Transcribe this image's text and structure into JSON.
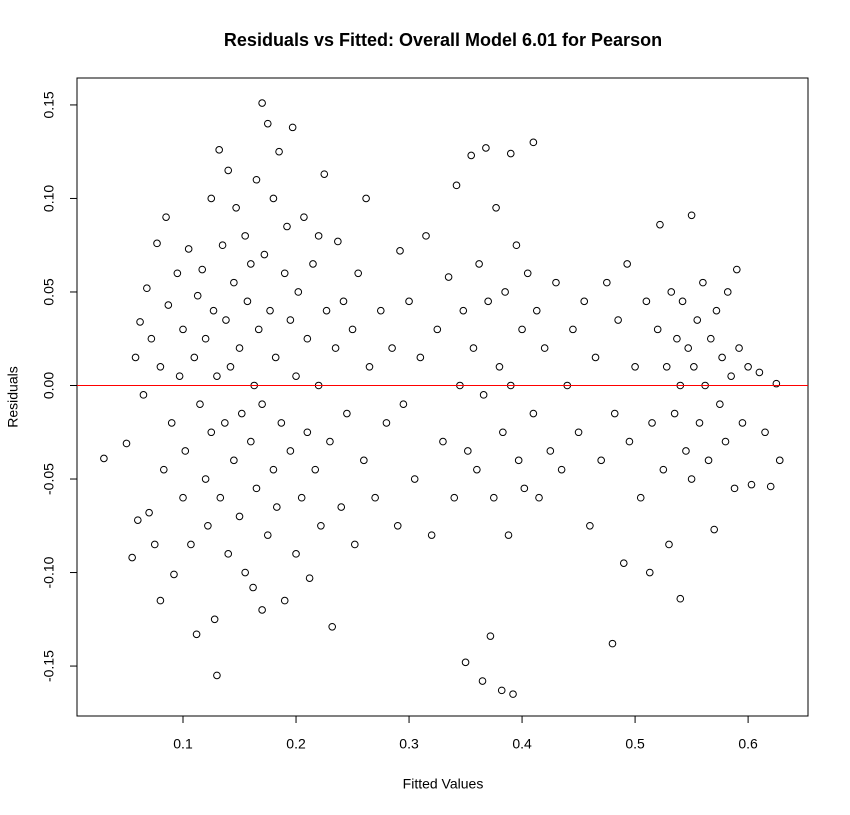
{
  "chart_data": {
    "type": "scatter",
    "title": "Residuals vs Fitted: Overall Model 6.01 for Pearson",
    "x_label": "Fitted Values",
    "y_label": "Residuals",
    "xlim": [
      0.0062,
      0.653
    ],
    "ylim": [
      -0.1767,
      0.1644
    ],
    "xticks": [
      0.1,
      0.2,
      0.3,
      0.4,
      0.5,
      0.6
    ],
    "yticks": [
      -0.15,
      {
        "value": -0.1,
        "label": "-0.10"
      },
      -0.05,
      {
        "value": 0,
        "label": "0.00"
      },
      0.05,
      {
        "value": 0.1,
        "label": "0.10"
      },
      0.15
    ],
    "color": "#000000",
    "hline": {
      "value": 0,
      "color": "#ff0000"
    },
    "x": [
      0.03,
      0.05,
      0.055,
      0.058,
      0.06,
      0.062,
      0.065,
      0.068,
      0.07,
      0.072,
      0.075,
      0.077,
      0.08,
      0.08,
      0.083,
      0.085,
      0.087,
      0.09,
      0.092,
      0.095,
      0.097,
      0.1,
      0.1,
      0.102,
      0.105,
      0.107,
      0.11,
      0.112,
      0.113,
      0.115,
      0.117,
      0.12,
      0.12,
      0.122,
      0.125,
      0.125,
      0.127,
      0.128,
      0.13,
      0.13,
      0.132,
      0.133,
      0.135,
      0.137,
      0.138,
      0.14,
      0.14,
      0.142,
      0.145,
      0.145,
      0.147,
      0.15,
      0.15,
      0.152,
      0.155,
      0.155,
      0.157,
      0.16,
      0.16,
      0.162,
      0.163,
      0.165,
      0.165,
      0.167,
      0.17,
      0.17,
      0.17,
      0.172,
      0.175,
      0.175,
      0.177,
      0.18,
      0.18,
      0.182,
      0.183,
      0.185,
      0.187,
      0.19,
      0.19,
      0.192,
      0.195,
      0.195,
      0.197,
      0.2,
      0.2,
      0.202,
      0.205,
      0.207,
      0.21,
      0.21,
      0.212,
      0.215,
      0.217,
      0.22,
      0.22,
      0.222,
      0.225,
      0.227,
      0.23,
      0.232,
      0.235,
      0.237,
      0.24,
      0.242,
      0.245,
      0.25,
      0.252,
      0.255,
      0.26,
      0.262,
      0.265,
      0.27,
      0.275,
      0.28,
      0.285,
      0.29,
      0.292,
      0.295,
      0.3,
      0.305,
      0.31,
      0.315,
      0.32,
      0.325,
      0.33,
      0.335,
      0.34,
      0.342,
      0.345,
      0.348,
      0.35,
      0.352,
      0.355,
      0.357,
      0.36,
      0.362,
      0.365,
      0.366,
      0.368,
      0.37,
      0.372,
      0.375,
      0.377,
      0.38,
      0.382,
      0.383,
      0.385,
      0.388,
      0.39,
      0.39,
      0.392,
      0.395,
      0.397,
      0.4,
      0.402,
      0.405,
      0.41,
      0.41,
      0.413,
      0.415,
      0.42,
      0.425,
      0.43,
      0.435,
      0.44,
      0.445,
      0.45,
      0.455,
      0.46,
      0.465,
      0.47,
      0.475,
      0.48,
      0.482,
      0.485,
      0.49,
      0.493,
      0.495,
      0.5,
      0.505,
      0.51,
      0.513,
      0.515,
      0.52,
      0.522,
      0.525,
      0.528,
      0.53,
      0.532,
      0.535,
      0.537,
      0.54,
      0.54,
      0.542,
      0.545,
      0.547,
      0.55,
      0.55,
      0.552,
      0.555,
      0.557,
      0.56,
      0.562,
      0.565,
      0.567,
      0.57,
      0.572,
      0.575,
      0.577,
      0.58,
      0.582,
      0.585,
      0.588,
      0.59,
      0.592,
      0.595,
      0.6,
      0.603,
      0.61,
      0.615,
      0.62,
      0.625,
      0.628
    ],
    "values": [
      -0.039,
      -0.031,
      -0.092,
      0.015,
      -0.072,
      0.034,
      -0.005,
      0.052,
      -0.068,
      0.025,
      -0.085,
      0.076,
      -0.115,
      0.01,
      -0.045,
      0.09,
      0.043,
      -0.02,
      -0.101,
      0.06,
      0.005,
      -0.06,
      0.03,
      -0.035,
      0.073,
      -0.085,
      0.015,
      -0.133,
      0.048,
      -0.01,
      0.062,
      -0.05,
      0.025,
      -0.075,
      0.1,
      -0.025,
      0.04,
      -0.125,
      -0.155,
      0.005,
      0.126,
      -0.06,
      0.075,
      -0.02,
      0.035,
      -0.09,
      0.115,
      0.01,
      -0.04,
      0.055,
      0.095,
      -0.07,
      0.02,
      -0.015,
      0.08,
      -0.1,
      0.045,
      -0.03,
      0.065,
      -0.108,
      0.0,
      0.11,
      -0.055,
      0.03,
      0.151,
      -0.12,
      -0.01,
      0.07,
      0.14,
      -0.08,
      0.04,
      -0.045,
      0.1,
      0.015,
      -0.065,
      0.125,
      -0.02,
      0.06,
      -0.115,
      0.085,
      -0.035,
      0.035,
      0.138,
      -0.09,
      0.005,
      0.05,
      -0.06,
      0.09,
      -0.025,
      0.025,
      -0.103,
      0.065,
      -0.045,
      0.08,
      0.0,
      -0.075,
      0.113,
      0.04,
      -0.03,
      -0.129,
      0.02,
      0.077,
      -0.065,
      0.045,
      -0.015,
      0.03,
      -0.085,
      0.06,
      -0.04,
      0.1,
      0.01,
      -0.06,
      0.04,
      -0.02,
      0.02,
      -0.075,
      0.072,
      -0.01,
      0.045,
      -0.05,
      0.015,
      0.08,
      -0.08,
      0.03,
      -0.03,
      0.058,
      -0.06,
      0.107,
      0.0,
      0.04,
      -0.148,
      -0.035,
      0.123,
      0.02,
      -0.045,
      0.065,
      -0.158,
      -0.005,
      0.127,
      0.045,
      -0.134,
      -0.06,
      0.095,
      0.01,
      -0.163,
      -0.025,
      0.05,
      -0.08,
      0.124,
      0.0,
      -0.165,
      0.075,
      -0.04,
      0.03,
      -0.055,
      0.06,
      0.13,
      -0.015,
      0.04,
      -0.06,
      0.02,
      -0.035,
      0.055,
      -0.045,
      0.0,
      0.03,
      -0.025,
      0.045,
      -0.075,
      0.015,
      -0.04,
      0.055,
      -0.138,
      -0.015,
      0.035,
      -0.095,
      0.065,
      -0.03,
      0.01,
      -0.06,
      0.045,
      -0.1,
      -0.02,
      0.03,
      0.086,
      -0.045,
      0.01,
      -0.085,
      0.05,
      -0.015,
      0.025,
      -0.114,
      0.0,
      0.045,
      -0.035,
      0.02,
      0.091,
      -0.05,
      0.01,
      0.035,
      -0.02,
      0.055,
      0.0,
      -0.04,
      0.025,
      -0.077,
      0.04,
      -0.01,
      0.015,
      -0.03,
      0.05,
      0.005,
      -0.055,
      0.062,
      0.02,
      -0.02,
      0.01,
      -0.053,
      0.007,
      -0.025,
      -0.054,
      0.001,
      -0.04
    ]
  }
}
